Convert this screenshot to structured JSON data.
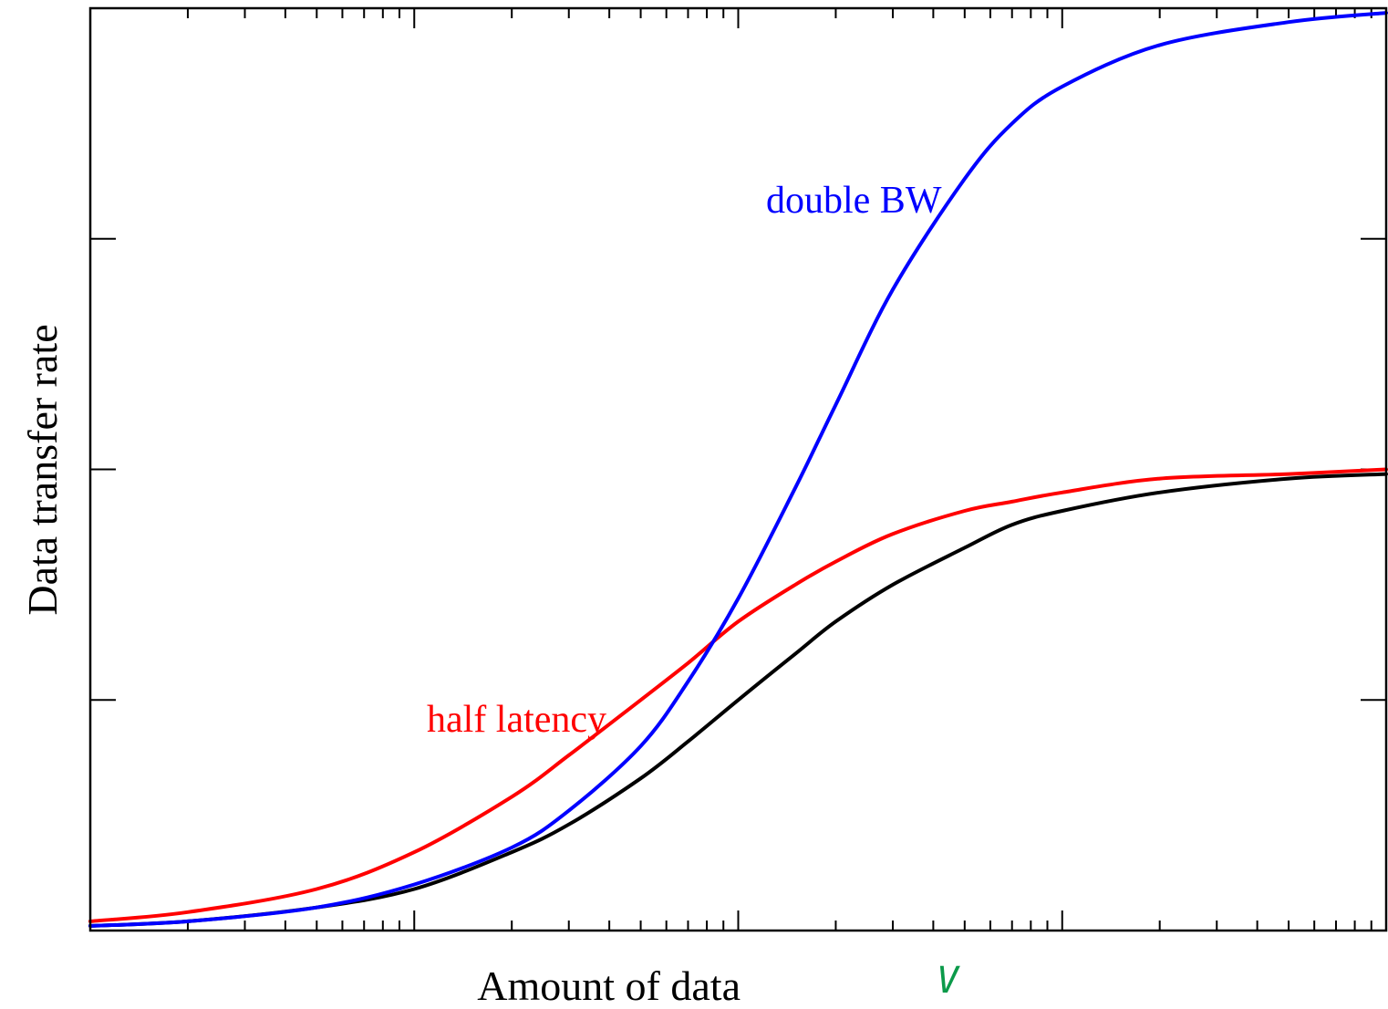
{
  "chart_data": {
    "type": "line",
    "title": "",
    "xlabel": "Amount of data",
    "xlabel_variable": "V",
    "ylabel": "Data transfer rate",
    "x_scale": "log",
    "xlim": [
      0.01,
      100
    ],
    "ylim": [
      0,
      2
    ],
    "y_major_tick_count": 4,
    "tick_labels_shown": false,
    "grid": false,
    "legend": "none (curves labelled inline)",
    "x": [
      0.01,
      0.02,
      0.05,
      0.1,
      0.2,
      0.3,
      0.5,
      0.7,
      1,
      1.5,
      2,
      3,
      5,
      7,
      10,
      20,
      50,
      100
    ],
    "series": [
      {
        "name": "",
        "color": "#000000",
        "values": [
          0.01,
          0.02,
          0.05,
          0.09,
          0.17,
          0.23,
          0.33,
          0.41,
          0.5,
          0.6,
          0.67,
          0.75,
          0.83,
          0.88,
          0.91,
          0.95,
          0.98,
          0.99
        ]
      },
      {
        "name": "half latency",
        "color": "#ff0000",
        "values": [
          0.02,
          0.04,
          0.09,
          0.17,
          0.29,
          0.38,
          0.5,
          0.58,
          0.67,
          0.75,
          0.8,
          0.86,
          0.91,
          0.93,
          0.95,
          0.98,
          0.99,
          1.0
        ]
      },
      {
        "name": "double BW",
        "color": "#0000ff",
        "values": [
          0.01,
          0.02,
          0.05,
          0.1,
          0.18,
          0.26,
          0.4,
          0.54,
          0.72,
          0.96,
          1.14,
          1.39,
          1.63,
          1.75,
          1.83,
          1.92,
          1.97,
          1.99
        ]
      }
    ]
  }
}
